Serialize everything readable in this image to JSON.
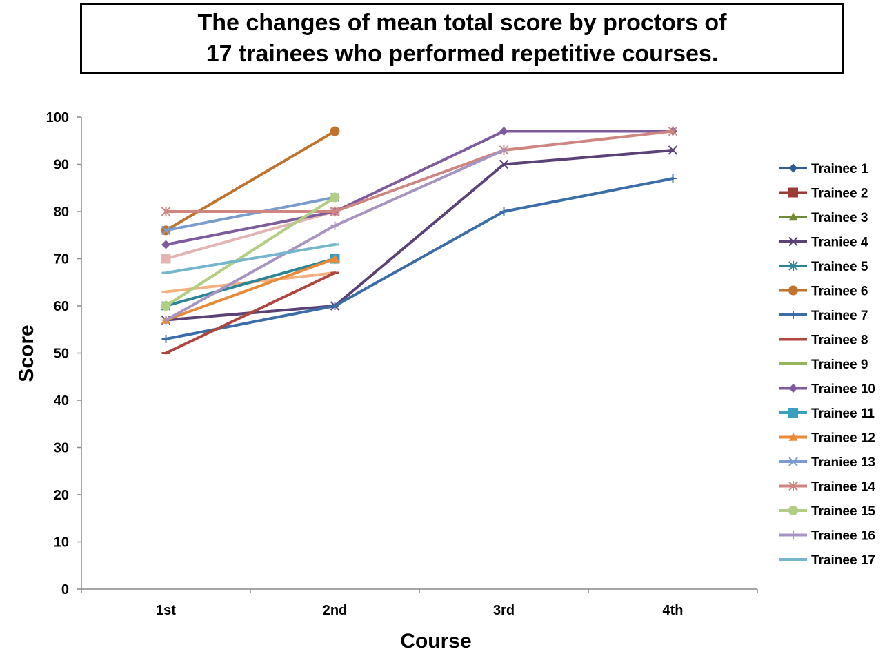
{
  "chart_data": {
    "type": "line",
    "title": [
      "The changes of mean total score by proctors of",
      "17 trainees who performed repetitive courses."
    ],
    "xlabel": "Course",
    "ylabel": "Score",
    "categories": [
      "1st",
      "2nd",
      "3rd",
      "4th"
    ],
    "ylim": [
      0,
      100
    ],
    "yticks": [
      0,
      10,
      20,
      30,
      40,
      50,
      60,
      70,
      80,
      90,
      100
    ],
    "legend_position": "right",
    "series": [
      {
        "name": "Trainee 1",
        "values": [
          null,
          null,
          null,
          null
        ],
        "color": "#2e5c8e",
        "marker": "diamond"
      },
      {
        "name": "Trainee 2",
        "values": [
          null,
          null,
          null,
          null
        ],
        "color": "#9c3a35",
        "marker": "square"
      },
      {
        "name": "Trainee 3",
        "values": [
          null,
          null,
          null,
          null
        ],
        "color": "#6e8a36",
        "marker": "triangle"
      },
      {
        "name": "Traniee 4",
        "values": [
          57,
          60,
          90,
          93
        ],
        "color": "#5a4276",
        "marker": "x"
      },
      {
        "name": "Trainee 5",
        "values": [
          60,
          70,
          null,
          null
        ],
        "color": "#2a8596",
        "marker": "star"
      },
      {
        "name": "Trainee 6",
        "values": [
          76,
          97,
          null,
          null
        ],
        "color": "#c0732c",
        "marker": "circle"
      },
      {
        "name": "Trainee 7",
        "values": [
          53,
          60,
          80,
          87
        ],
        "color": "#3b6ea8",
        "marker": "plus"
      },
      {
        "name": "Trainee 8",
        "values": [
          50,
          67,
          null,
          null
        ],
        "color": "#b04540",
        "marker": "dash"
      },
      {
        "name": "Trainee 9",
        "values": [
          60,
          83,
          null,
          null
        ],
        "color": "#94b55a",
        "marker": "dash"
      },
      {
        "name": "Trainee 10",
        "values": [
          73,
          80,
          97,
          97
        ],
        "color": "#7d5b9c",
        "marker": "diamond"
      },
      {
        "name": "Trainee 11",
        "values": [
          null,
          70,
          null,
          null
        ],
        "color": "#3aa0c0",
        "marker": "square"
      },
      {
        "name": "Trainee 12",
        "values": [
          57,
          70,
          null,
          null
        ],
        "color": "#ea8a38",
        "marker": "triangle"
      },
      {
        "name": "Traniee 13",
        "values": [
          76,
          83,
          null,
          null
        ],
        "color": "#7a9cce",
        "marker": "x"
      },
      {
        "name": "Trainee 14",
        "values": [
          80,
          80,
          93,
          97
        ],
        "color": "#d08680",
        "marker": "star"
      },
      {
        "name": "Trainee 15",
        "values": [
          60,
          83,
          null,
          null
        ],
        "color": "#b2ce84",
        "marker": "circle"
      },
      {
        "name": "Trainee 16",
        "values": [
          57,
          77,
          93,
          null
        ],
        "color": "#a694c2",
        "marker": "plus"
      },
      {
        "name": "Trainee 17",
        "values": [
          67,
          73,
          null,
          null
        ],
        "color": "#76b6cc",
        "marker": "dash"
      }
    ],
    "extra_lines": [
      {
        "values": [
          70,
          80,
          null,
          null
        ],
        "color": "#e2b4b2",
        "marker": "square"
      },
      {
        "values": [
          63,
          67,
          null,
          null
        ],
        "color": "#f5b080",
        "marker": "dash"
      }
    ]
  }
}
